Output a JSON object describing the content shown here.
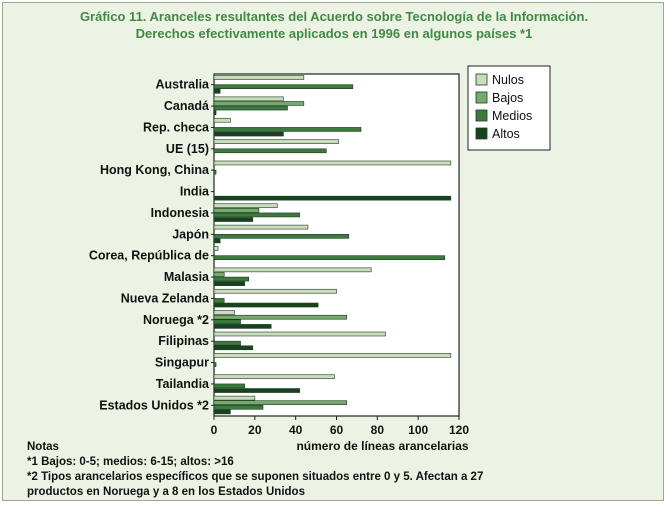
{
  "title_line1": "Gráfico 11. Aranceles resultantes del Acuerdo sobre Tecnología de la Información.",
  "title_line2": "Derechos efectivamente aplicados en 1996 en algunos países *1",
  "notes": {
    "heading": "Notas",
    "note1": "*1 Bajos: 0-5; medios: 6-15; altos: >16",
    "note2_line1": "*2 Tipos arancelarios específicos que se suponen situados entre 0 y 5. Afectan a 27",
    "note2_line2": "productos en Noruega y a 8 en los Estados Unidos"
  },
  "chart_data": {
    "type": "bar",
    "orientation": "horizontal",
    "categories": [
      "Australia",
      "Canadá",
      "Rep. checa",
      "UE (15)",
      "Hong Kong, China",
      "India",
      "Indonesia",
      "Japón",
      "Corea, República de",
      "Malasia",
      "Nueva Zelanda",
      "Noruega *2",
      "Filipinas",
      "Singapur",
      "Tailandia",
      "Estados Unidos *2"
    ],
    "series": [
      {
        "name": "Nulos",
        "color": "#c9dcbc",
        "values": [
          44,
          34,
          8,
          61,
          116,
          0,
          31,
          46,
          2,
          77,
          60,
          10,
          84,
          116,
          59,
          20
        ]
      },
      {
        "name": "Bajos",
        "color": "#74ab6d",
        "values": [
          0,
          44,
          0,
          0,
          0,
          0,
          22,
          0,
          0,
          5,
          0,
          65,
          0,
          0,
          0,
          65
        ]
      },
      {
        "name": "Medios",
        "color": "#3c7a40",
        "values": [
          68,
          36,
          72,
          55,
          1,
          0,
          42,
          66,
          113,
          17,
          5,
          13,
          13,
          1,
          15,
          24
        ]
      },
      {
        "name": "Altos",
        "color": "#15431c",
        "values": [
          3,
          1,
          34,
          0,
          0,
          116,
          19,
          3,
          0,
          15,
          51,
          28,
          19,
          0,
          42,
          8
        ]
      }
    ],
    "xlabel": "número de líneas arancelarias",
    "xlim": [
      0,
      120
    ],
    "xticks": [
      0,
      20,
      40,
      60,
      80,
      100,
      120
    ],
    "legend_position": "top-right",
    "grid": false
  }
}
